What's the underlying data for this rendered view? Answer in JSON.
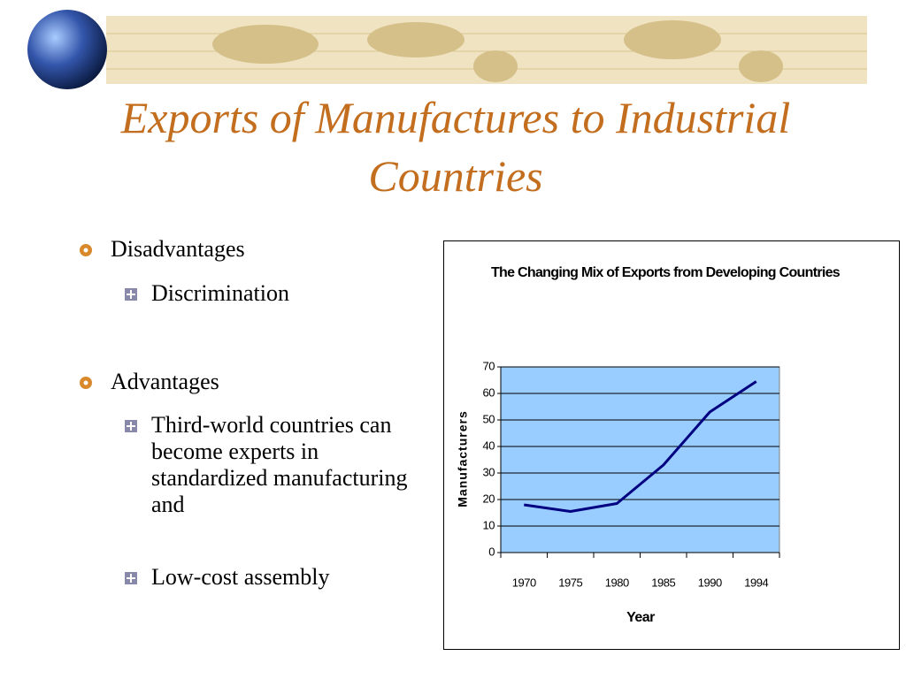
{
  "slide": {
    "title": "Exports of Manufactures to Industrial Countries",
    "bullets": [
      {
        "text": "Disadvantages",
        "sub": [
          "Discrimination"
        ]
      },
      {
        "text": "Advantages",
        "sub": [
          "Third-world countries can become experts in standardized manufacturing and",
          "Low-cost assembly"
        ]
      }
    ]
  },
  "chart_data": {
    "type": "line",
    "title": "The Changing Mix of Exports from Developing Countries",
    "x_label": "Year",
    "y_label": "Manufacturers",
    "categories": [
      "1970",
      "1975",
      "1980",
      "1985",
      "1990",
      "1994"
    ],
    "values": [
      18,
      15.5,
      18.5,
      33,
      53,
      64.5
    ],
    "color": "#000080",
    "plot_background": "#99ccff",
    "ylim": [
      0,
      70
    ],
    "yticks": [
      0,
      10,
      20,
      30,
      40,
      50,
      60,
      70
    ],
    "grid": true
  }
}
